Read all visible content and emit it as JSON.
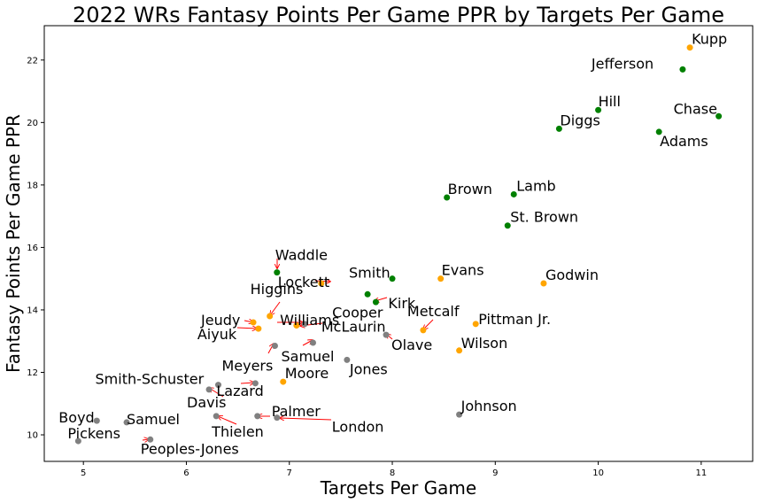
{
  "chart_data": {
    "type": "scatter",
    "title": "2022 WRs Fantasy Points Per Game PPR by Targets Per Game",
    "xlabel": "Targets Per Game",
    "ylabel": "Fantasy Points Per Game PPR",
    "xlim": [
      4.62,
      11.5
    ],
    "ylim": [
      9.15,
      23.1
    ],
    "xticks": [
      "5",
      "6",
      "7",
      "8",
      "9",
      "10",
      "11"
    ],
    "yticks": [
      "10",
      "12",
      "14",
      "16",
      "18",
      "20",
      "22"
    ],
    "grid": false,
    "legend": "none",
    "colors": {
      "green": "#008000",
      "orange": "#ffa500",
      "gray": "#808080",
      "arrow": "#ff0000"
    },
    "points": [
      {
        "name": "Kupp",
        "x": 10.89,
        "y": 22.4,
        "color": "orange"
      },
      {
        "name": "Jefferson",
        "x": 10.82,
        "y": 21.7,
        "color": "green"
      },
      {
        "name": "Hill",
        "x": 10.0,
        "y": 20.4,
        "color": "green"
      },
      {
        "name": "Chase",
        "x": 11.17,
        "y": 20.2,
        "color": "green"
      },
      {
        "name": "Diggs",
        "x": 9.62,
        "y": 19.8,
        "color": "green"
      },
      {
        "name": "Adams",
        "x": 10.59,
        "y": 19.7,
        "color": "green"
      },
      {
        "name": "Brown",
        "x": 8.53,
        "y": 17.6,
        "color": "green"
      },
      {
        "name": "Lamb",
        "x": 9.18,
        "y": 17.7,
        "color": "green"
      },
      {
        "name": "St. Brown",
        "x": 9.12,
        "y": 16.7,
        "color": "green"
      },
      {
        "name": "Waddle",
        "x": 6.88,
        "y": 15.2,
        "color": "green"
      },
      {
        "name": "Smith",
        "x": 8.0,
        "y": 15.0,
        "color": "green"
      },
      {
        "name": "Evans",
        "x": 8.47,
        "y": 15.0,
        "color": "orange"
      },
      {
        "name": "Godwin",
        "x": 9.47,
        "y": 14.85,
        "color": "orange"
      },
      {
        "name": "Lockett",
        "x": 7.31,
        "y": 14.85,
        "color": "orange"
      },
      {
        "name": "Cooper",
        "x": 7.76,
        "y": 14.5,
        "color": "green"
      },
      {
        "name": "Kirk",
        "x": 7.84,
        "y": 14.25,
        "color": "green"
      },
      {
        "name": "Higgins",
        "x": 6.81,
        "y": 13.8,
        "color": "orange"
      },
      {
        "name": "Jeudy",
        "x": 6.65,
        "y": 13.6,
        "color": "orange"
      },
      {
        "name": "Williams",
        "x": 7.15,
        "y": 13.55,
        "color": "gray"
      },
      {
        "name": "McLaurin",
        "x": 7.07,
        "y": 13.5,
        "color": "orange"
      },
      {
        "name": "Pittman Jr.",
        "x": 8.81,
        "y": 13.55,
        "color": "orange"
      },
      {
        "name": "Aiyuk",
        "x": 6.7,
        "y": 13.4,
        "color": "orange"
      },
      {
        "name": "Metcalf",
        "x": 8.3,
        "y": 13.35,
        "color": "orange"
      },
      {
        "name": "Olave",
        "x": 7.94,
        "y": 13.2,
        "color": "gray"
      },
      {
        "name": "Samuel",
        "x": 7.23,
        "y": 12.95,
        "color": "gray"
      },
      {
        "name": "Meyers",
        "x": 6.86,
        "y": 12.85,
        "color": "gray"
      },
      {
        "name": "Wilson",
        "x": 8.65,
        "y": 12.7,
        "color": "orange"
      },
      {
        "name": "Jones",
        "x": 7.56,
        "y": 12.4,
        "color": "gray"
      },
      {
        "name": "Moore",
        "x": 6.94,
        "y": 11.7,
        "color": "orange"
      },
      {
        "name": "Lazard",
        "x": 6.67,
        "y": 11.65,
        "color": "gray"
      },
      {
        "name": "Smith-Schuster",
        "x": 6.31,
        "y": 11.6,
        "color": "gray"
      },
      {
        "name": "Davis",
        "x": 6.22,
        "y": 11.45,
        "color": "gray"
      },
      {
        "name": "Johnson",
        "x": 8.65,
        "y": 10.65,
        "color": "gray"
      },
      {
        "name": "Thielen",
        "x": 6.29,
        "y": 10.6,
        "color": "gray"
      },
      {
        "name": "Palmer",
        "x": 6.69,
        "y": 10.6,
        "color": "gray"
      },
      {
        "name": "London",
        "x": 6.88,
        "y": 10.55,
        "color": "gray"
      },
      {
        "name": "Boyd",
        "x": 5.13,
        "y": 10.45,
        "color": "gray"
      },
      {
        "name": "Samuel",
        "x": 5.42,
        "y": 10.4,
        "color": "gray"
      },
      {
        "name": "Peoples-Jones",
        "x": 5.65,
        "y": 9.85,
        "color": "gray"
      },
      {
        "name": "Pickens",
        "x": 4.95,
        "y": 9.8,
        "color": "gray"
      }
    ]
  }
}
